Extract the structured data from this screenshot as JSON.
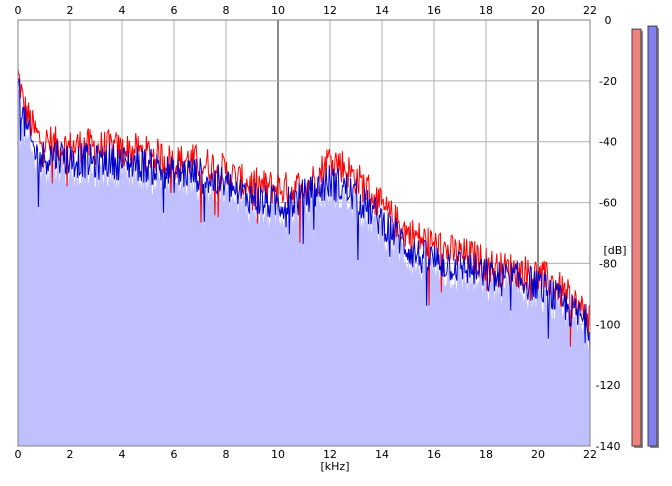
{
  "chart_data": {
    "type": "line",
    "title": "",
    "xlabel": "[kHz]",
    "ylabel": "[dB]",
    "xlim": [
      0,
      22
    ],
    "ylim": [
      -140,
      0
    ],
    "x_ticks": [
      "0",
      "2",
      "4",
      "6",
      "8",
      "10",
      "12",
      "14",
      "16",
      "18",
      "20",
      "22"
    ],
    "y_ticks": [
      "0",
      "-20",
      "-40",
      "-60",
      "-80",
      "-100",
      "-120",
      "-140"
    ],
    "grid": true,
    "legend": "none",
    "series": [
      {
        "color": "#ff0000",
        "x": [
          0,
          0.1,
          0.2,
          0.4,
          0.6,
          0.8,
          1,
          1.5,
          2,
          2.5,
          3,
          3.5,
          4,
          4.5,
          5,
          5.5,
          6,
          6.5,
          7,
          7.5,
          8,
          8.5,
          9,
          9.5,
          10,
          10.5,
          11,
          11.5,
          12,
          12.5,
          13,
          13.5,
          14,
          14.5,
          15,
          15.5,
          16,
          16.5,
          17,
          17.5,
          18,
          18.5,
          19,
          19.5,
          20,
          20.5,
          21,
          21.5,
          22
        ],
        "values": [
          -18,
          -22,
          -28,
          -32,
          -36,
          -39,
          -40,
          -41,
          -42,
          -41,
          -42,
          -42,
          -43,
          -43,
          -44,
          -45,
          -47,
          -46,
          -47,
          -48,
          -50,
          -53,
          -54,
          -55,
          -55,
          -56,
          -54,
          -52,
          -45,
          -48,
          -52,
          -56,
          -62,
          -66,
          -70,
          -72,
          -74,
          -76,
          -77,
          -78,
          -80,
          -82,
          -82,
          -83,
          -84,
          -86,
          -90,
          -94,
          -98
        ]
      },
      {
        "color": "#0000cc",
        "x": [
          0,
          0.1,
          0.2,
          0.4,
          0.6,
          0.8,
          1,
          1.5,
          2,
          2.5,
          3,
          3.5,
          4,
          4.5,
          5,
          5.5,
          6,
          6.5,
          7,
          7.5,
          8,
          8.5,
          9,
          9.5,
          10,
          10.5,
          11,
          11.5,
          12,
          12.5,
          13,
          13.5,
          14,
          14.5,
          15,
          15.5,
          16,
          16.5,
          17,
          17.5,
          18,
          18.5,
          19,
          19.5,
          20,
          20.5,
          21,
          21.5,
          22
        ],
        "values": [
          -20,
          -26,
          -32,
          -38,
          -42,
          -46,
          -45,
          -44,
          -46,
          -46,
          -47,
          -46,
          -47,
          -47,
          -48,
          -49,
          -51,
          -50,
          -51,
          -53,
          -54,
          -57,
          -58,
          -60,
          -60,
          -60,
          -58,
          -56,
          -53,
          -55,
          -58,
          -62,
          -66,
          -70,
          -75,
          -78,
          -79,
          -80,
          -81,
          -82,
          -84,
          -85,
          -85,
          -86,
          -87,
          -90,
          -94,
          -97,
          -100
        ]
      }
    ],
    "level_meters": [
      {
        "color": "#f08080",
        "level_db": -3
      },
      {
        "color": "#8080ee",
        "level_db": -2
      }
    ]
  }
}
